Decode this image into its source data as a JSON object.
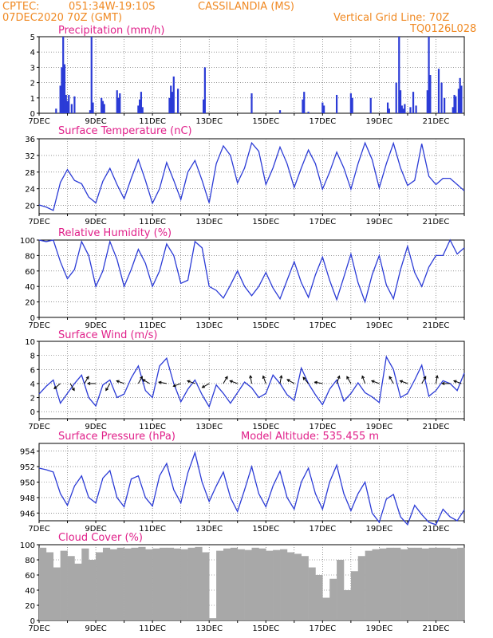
{
  "header": {
    "source": "CPTEC:",
    "coords": "051:34W-19:10S",
    "station": "CASSILANDIA (MS)",
    "run": "07DEC2020 70Z (GMT)",
    "grid_note": "Vertical Grid Line: 70Z",
    "model_code": "TQ0126L028"
  },
  "colors": {
    "header": "#f08a24",
    "title": "#e0208a",
    "series": "#2b3bd6",
    "cloud": "#a8a8a8",
    "grid": "#555555"
  },
  "shared_x": {
    "day_labels": [
      "7DEC",
      "9DEC",
      "11DEC",
      "13DEC",
      "15DEC",
      "17DEC",
      "19DEC",
      "21DEC"
    ],
    "span_days": 15
  },
  "chart_data": [
    {
      "id": "precip",
      "type": "bar",
      "title": "Precipitation (mm/h)",
      "ylim": [
        0,
        5
      ],
      "yticks": [
        0,
        1,
        2,
        3,
        4,
        5
      ],
      "x_days": [
        0.6,
        0.75,
        0.8,
        0.85,
        0.9,
        0.95,
        1.0,
        1.05,
        1.15,
        1.25,
        1.8,
        1.85,
        1.9,
        2.2,
        2.25,
        2.3,
        2.75,
        2.8,
        2.85,
        3.5,
        3.55,
        3.6,
        3.65,
        4.6,
        4.65,
        4.7,
        4.75,
        4.9,
        5.8,
        5.85,
        7.5,
        8.5,
        9.3,
        9.35,
        9.5,
        10.0,
        10.05,
        10.5,
        11.0,
        11.05,
        11.7,
        12.3,
        12.35,
        12.6,
        12.7,
        12.75,
        12.8,
        12.85,
        12.9,
        13.1,
        13.2,
        13.3,
        13.7,
        13.75,
        13.8,
        14.1,
        14.2,
        14.3,
        14.6,
        14.65,
        14.7,
        14.8,
        14.85,
        14.9
      ],
      "values": [
        0.3,
        1.8,
        3.0,
        5.0,
        3.2,
        1.2,
        0.8,
        1.2,
        0.6,
        1.1,
        0.2,
        5.0,
        0.7,
        1.0,
        0.8,
        0.6,
        1.5,
        1.0,
        1.3,
        0.5,
        0.9,
        1.4,
        0.4,
        1.0,
        1.8,
        1.4,
        2.4,
        1.6,
        0.9,
        3.0,
        1.3,
        0.2,
        0.9,
        1.4,
        0.1,
        0.7,
        0.5,
        1.2,
        1.3,
        1.0,
        1.0,
        0.7,
        0.3,
        2.0,
        5.0,
        1.5,
        0.5,
        0.3,
        0.6,
        0.4,
        1.4,
        0.5,
        1.5,
        5.0,
        2.5,
        2.9,
        2.0,
        1.0,
        0.4,
        1.2,
        1.1,
        1.6,
        2.3,
        1.8
      ]
    },
    {
      "id": "temp",
      "type": "line",
      "title": "Surface Temperature (nC)",
      "ylim": [
        18,
        36
      ],
      "yticks": [
        20,
        24,
        28,
        32,
        36
      ],
      "x_days": [
        0.0,
        0.25,
        0.5,
        0.75,
        1.0,
        1.25,
        1.5,
        1.75,
        2.0,
        2.25,
        2.5,
        2.75,
        3.0,
        3.25,
        3.5,
        3.75,
        4.0,
        4.25,
        4.5,
        4.75,
        5.0,
        5.25,
        5.5,
        5.75,
        6.0,
        6.25,
        6.5,
        6.75,
        7.0,
        7.25,
        7.5,
        7.75,
        8.0,
        8.25,
        8.5,
        8.75,
        9.0,
        9.25,
        9.5,
        9.75,
        10.0,
        10.25,
        10.5,
        10.75,
        11.0,
        11.25,
        11.5,
        11.75,
        12.0,
        12.25,
        12.5,
        12.75,
        13.0,
        13.25,
        13.5,
        13.75,
        14.0,
        14.25,
        14.5,
        14.75,
        15.0
      ],
      "values": [
        20.1,
        19.6,
        18.8,
        25.5,
        28.6,
        26.0,
        25.2,
        22.0,
        20.6,
        25.8,
        28.9,
        25.0,
        21.6,
        26.5,
        31.0,
        26.0,
        20.5,
        24.0,
        30.3,
        26.0,
        21.4,
        28.0,
        30.8,
        26.0,
        20.6,
        30.0,
        34.3,
        32.0,
        25.4,
        29.0,
        35.0,
        33.0,
        25.0,
        29.0,
        34.0,
        30.0,
        24.3,
        29.0,
        33.3,
        30.0,
        23.9,
        28.0,
        32.8,
        29.0,
        23.9,
        30.0,
        35.0,
        31.0,
        24.2,
        30.0,
        34.9,
        29.0,
        24.8,
        26.0,
        34.8,
        27.0,
        25.0,
        26.5,
        26.5,
        25.0,
        23.5
      ]
    },
    {
      "id": "rh",
      "type": "line",
      "title": "Relative Humidity (%)",
      "ylim": [
        0,
        100
      ],
      "yticks": [
        0,
        20,
        40,
        60,
        80,
        100
      ],
      "x_days": [
        0.0,
        0.25,
        0.5,
        0.75,
        1.0,
        1.25,
        1.5,
        1.75,
        2.0,
        2.25,
        2.5,
        2.75,
        3.0,
        3.25,
        3.5,
        3.75,
        4.0,
        4.25,
        4.5,
        4.75,
        5.0,
        5.25,
        5.5,
        5.75,
        6.0,
        6.25,
        6.5,
        6.75,
        7.0,
        7.25,
        7.5,
        7.75,
        8.0,
        8.25,
        8.5,
        8.75,
        9.0,
        9.25,
        9.5,
        9.75,
        10.0,
        10.25,
        10.5,
        10.75,
        11.0,
        11.25,
        11.5,
        11.75,
        12.0,
        12.25,
        12.5,
        12.75,
        13.0,
        13.25,
        13.5,
        13.75,
        14.0,
        14.25,
        14.5,
        14.75,
        15.0
      ],
      "values": [
        100,
        98,
        100,
        72,
        50,
        62,
        98,
        80,
        40,
        60,
        98,
        75,
        40,
        62,
        88,
        70,
        40,
        60,
        95,
        80,
        44,
        48,
        98,
        90,
        40,
        35,
        25,
        42,
        60,
        40,
        28,
        40,
        58,
        38,
        24,
        48,
        72,
        45,
        26,
        55,
        78,
        48,
        23,
        52,
        82,
        45,
        20,
        55,
        80,
        42,
        24,
        62,
        92,
        58,
        40,
        65,
        80,
        80,
        100,
        82,
        90
      ]
    },
    {
      "id": "wind",
      "type": "line",
      "title": "Surface Wind (m/s)",
      "ylim": [
        -1,
        10
      ],
      "yticks": [
        0,
        2,
        4,
        6,
        8,
        10
      ],
      "x_days": [
        0.0,
        0.25,
        0.5,
        0.75,
        1.0,
        1.25,
        1.5,
        1.75,
        2.0,
        2.25,
        2.5,
        2.75,
        3.0,
        3.25,
        3.5,
        3.75,
        4.0,
        4.25,
        4.5,
        4.75,
        5.0,
        5.25,
        5.5,
        5.75,
        6.0,
        6.25,
        6.5,
        6.75,
        7.0,
        7.25,
        7.5,
        7.75,
        8.0,
        8.25,
        8.5,
        8.75,
        9.0,
        9.25,
        9.5,
        9.75,
        10.0,
        10.25,
        10.5,
        10.75,
        11.0,
        11.25,
        11.5,
        11.75,
        12.0,
        12.25,
        12.5,
        12.75,
        13.0,
        13.25,
        13.5,
        13.75,
        14.0,
        14.25,
        14.5,
        14.75,
        15.0
      ],
      "values": [
        2.5,
        3.6,
        4.5,
        1.2,
        2.6,
        4.0,
        5.2,
        2.0,
        0.8,
        3.8,
        4.5,
        2.0,
        2.5,
        4.8,
        6.5,
        3.0,
        2.0,
        6.5,
        7.6,
        4.0,
        1.4,
        3.2,
        4.5,
        2.4,
        0.7,
        3.8,
        2.6,
        1.2,
        2.7,
        4.2,
        3.4,
        2.0,
        2.6,
        5.2,
        4.0,
        2.4,
        1.6,
        6.2,
        4.0,
        2.4,
        1.0,
        3.2,
        4.5,
        1.5,
        2.6,
        4.1,
        2.7,
        2.1,
        1.3,
        7.8,
        6.0,
        2.0,
        2.6,
        4.5,
        6.6,
        2.2,
        3.0,
        4.4,
        4.0,
        3.0,
        5.5
      ],
      "arrows_x_days": [
        0.75,
        1.1,
        1.6,
        2.0,
        2.5,
        3.0,
        3.5,
        3.9,
        4.5,
        5.0,
        5.5,
        6.0,
        6.5,
        7.0,
        7.5,
        8.0,
        8.5,
        9.0,
        9.5,
        10.0,
        10.5,
        11.0,
        11.5,
        12.0,
        12.5,
        13.0,
        13.5,
        14.0,
        14.5,
        14.9
      ],
      "arrows_dir_deg": [
        140,
        60,
        300,
        180,
        120,
        200,
        300,
        210,
        190,
        160,
        200,
        150,
        300,
        200,
        260,
        250,
        280,
        210,
        230,
        190,
        290,
        240,
        250,
        200,
        240,
        200,
        300,
        280,
        180,
        200
      ]
    },
    {
      "id": "pres",
      "type": "line",
      "title": "Surface Pressure (hPa)",
      "annotation": "Model Altitude: 535.455 m",
      "ylim": [
        945,
        955
      ],
      "yticks": [
        946,
        948,
        950,
        952,
        954
      ],
      "x_days": [
        0.0,
        0.25,
        0.5,
        0.75,
        1.0,
        1.25,
        1.5,
        1.75,
        2.0,
        2.25,
        2.5,
        2.75,
        3.0,
        3.25,
        3.5,
        3.75,
        4.0,
        4.25,
        4.5,
        4.75,
        5.0,
        5.25,
        5.5,
        5.75,
        6.0,
        6.25,
        6.5,
        6.75,
        7.0,
        7.25,
        7.5,
        7.75,
        8.0,
        8.25,
        8.5,
        8.75,
        9.0,
        9.25,
        9.5,
        9.75,
        10.0,
        10.25,
        10.5,
        10.75,
        11.0,
        11.25,
        11.5,
        11.75,
        12.0,
        12.25,
        12.5,
        12.75,
        13.0,
        13.25,
        13.5,
        13.75,
        14.0,
        14.25,
        14.5,
        14.75,
        15.0
      ],
      "values": [
        951.8,
        951.6,
        951.3,
        948.5,
        947.0,
        949.5,
        950.8,
        948.0,
        947.3,
        950.5,
        951.5,
        948.0,
        946.8,
        950.4,
        950.8,
        948.0,
        946.9,
        950.8,
        952.4,
        949.0,
        947.3,
        951.2,
        953.8,
        950.0,
        947.5,
        949.5,
        951.3,
        948.0,
        946.2,
        949.0,
        952.0,
        948.5,
        946.8,
        949.5,
        951.4,
        948.0,
        946.5,
        950.0,
        951.8,
        948.5,
        946.5,
        950.0,
        952.2,
        948.5,
        946.3,
        948.5,
        950.0,
        946.0,
        944.8,
        947.8,
        948.4,
        945.5,
        944.5,
        947.0,
        945.8,
        944.8,
        944.5,
        946.5,
        945.5,
        945.0,
        946.4
      ]
    },
    {
      "id": "cloud",
      "type": "bar",
      "title": "Cloud Cover (%)",
      "ylim": [
        0,
        100
      ],
      "yticks": [
        0,
        20,
        40,
        60,
        80,
        100
      ],
      "x_days": [
        0.0,
        0.25,
        0.5,
        0.75,
        1.0,
        1.25,
        1.5,
        1.75,
        2.0,
        2.25,
        2.5,
        2.75,
        3.0,
        3.25,
        3.5,
        3.75,
        4.0,
        4.25,
        4.5,
        4.75,
        5.0,
        5.25,
        5.5,
        5.75,
        6.0,
        6.25,
        6.5,
        6.75,
        7.0,
        7.25,
        7.5,
        7.75,
        8.0,
        8.25,
        8.5,
        8.75,
        9.0,
        9.25,
        9.5,
        9.75,
        10.0,
        10.25,
        10.5,
        10.75,
        11.0,
        11.25,
        11.5,
        11.75,
        12.0,
        12.25,
        12.5,
        12.75,
        13.0,
        13.25,
        13.5,
        13.75,
        14.0,
        14.25,
        14.5,
        14.75
      ],
      "values": [
        96,
        90,
        70,
        92,
        85,
        75,
        95,
        80,
        90,
        96,
        94,
        96,
        95,
        96,
        97,
        94,
        95,
        96,
        96,
        95,
        94,
        96,
        97,
        90,
        3,
        92,
        95,
        96,
        94,
        93,
        96,
        95,
        92,
        93,
        94,
        90,
        88,
        85,
        70,
        60,
        30,
        55,
        80,
        40,
        65,
        85,
        92,
        94,
        95,
        96,
        96,
        94,
        96,
        96,
        95,
        96,
        96,
        96,
        95,
        96
      ]
    }
  ]
}
